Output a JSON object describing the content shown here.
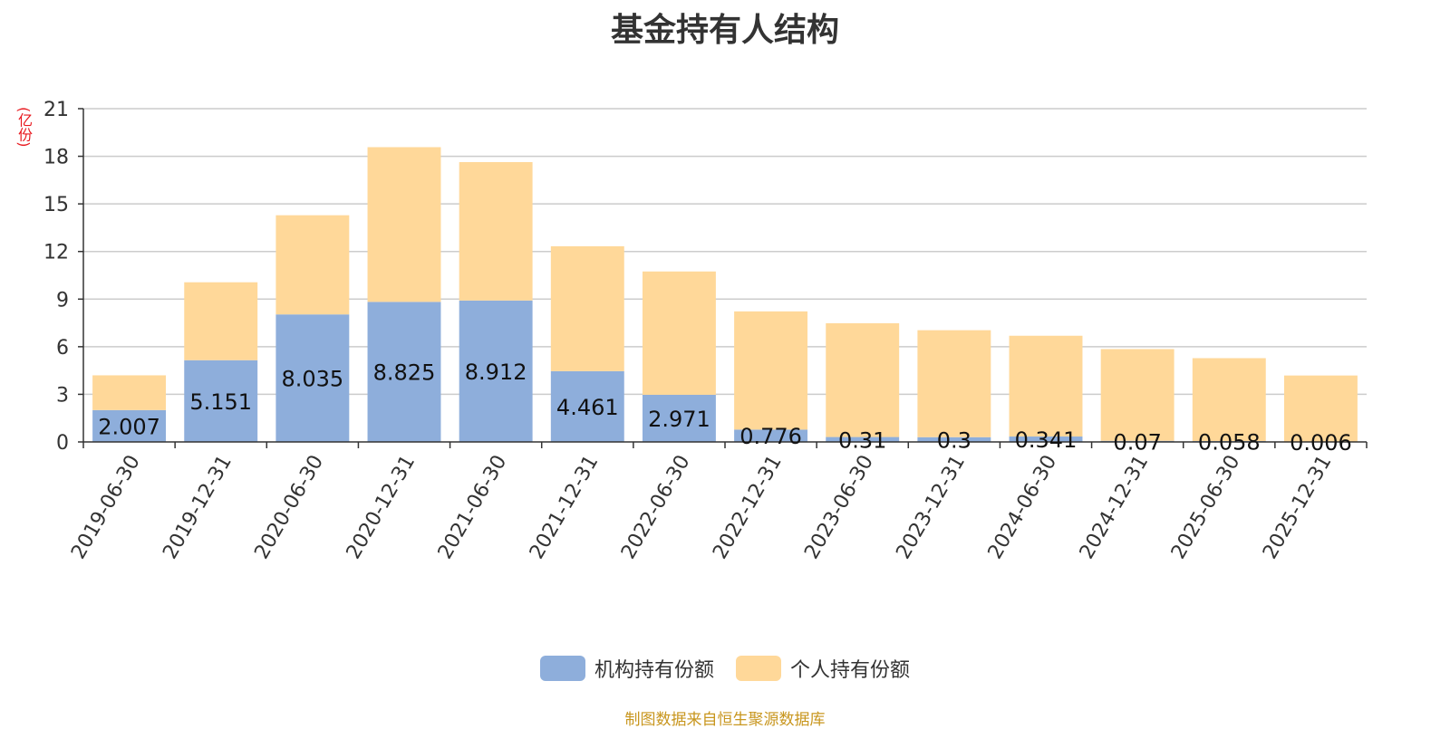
{
  "chart_data": {
    "type": "bar",
    "stacked": true,
    "title": "基金持有人结构",
    "ylabel": "(亿份)",
    "ylim": [
      0,
      21
    ],
    "yticks": [
      0,
      3,
      6,
      9,
      12,
      15,
      18,
      21
    ],
    "grid": true,
    "legend_position": "bottom",
    "categories": [
      "2019-06-30",
      "2019-12-31",
      "2020-06-30",
      "2020-12-31",
      "2021-06-30",
      "2021-12-31",
      "2022-06-30",
      "2022-12-31",
      "2023-06-30",
      "2023-12-31",
      "2024-06-30",
      "2024-12-31",
      "2025-06-30",
      "2025-12-31"
    ],
    "series": [
      {
        "name": "机构持有份额",
        "color": "#8eaedb",
        "values": [
          2.007,
          5.151,
          8.035,
          8.825,
          8.912,
          4.461,
          2.971,
          0.776,
          0.31,
          0.3,
          0.341,
          0.07,
          0.058,
          0.006
        ],
        "labels": [
          "2.007",
          "5.151",
          "8.035",
          "8.825",
          "8.912",
          "4.461",
          "2.971",
          "0.776",
          "0.31",
          "0.3",
          "0.341",
          "0.07",
          "0.058",
          "0.006"
        ]
      },
      {
        "name": "个人持有份额",
        "color": "#ffd899",
        "values": [
          2.19,
          4.91,
          6.25,
          9.75,
          8.72,
          7.87,
          7.77,
          7.45,
          7.17,
          6.74,
          6.35,
          5.78,
          5.22,
          4.18
        ]
      }
    ]
  },
  "source_note": "制图数据来自恒生聚源数据库"
}
